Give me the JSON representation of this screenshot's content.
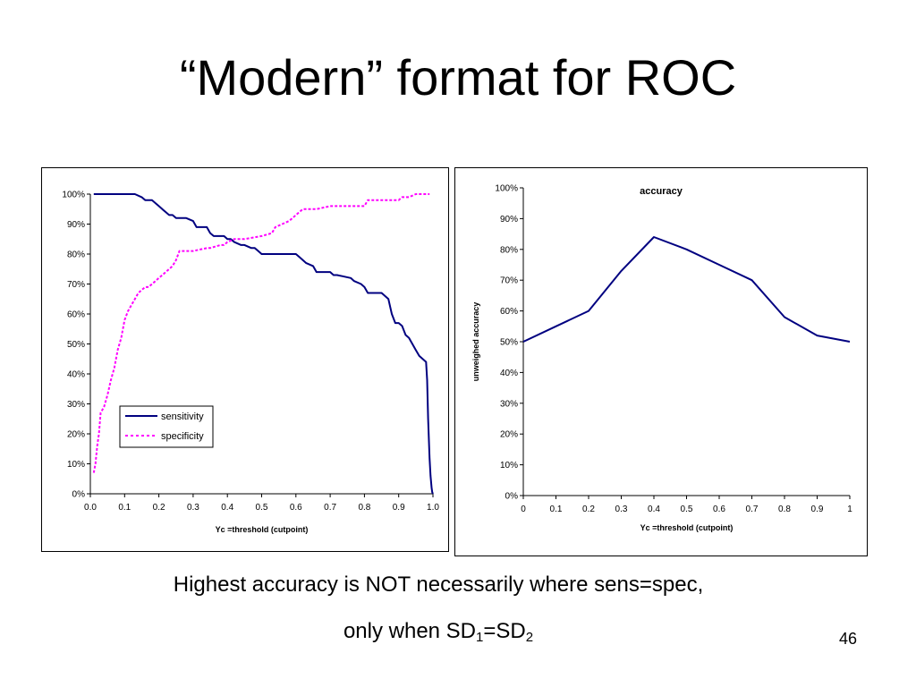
{
  "slide": {
    "title": "“Modern” format for ROC",
    "caption_line1": "Highest accuracy is NOT necessarily where sens=spec,",
    "caption_line2_prefix": "only when SD",
    "caption_sub1": "1",
    "caption_eq": "=SD",
    "caption_sub2": "2",
    "page_number": "46"
  },
  "chart_data": [
    {
      "type": "line",
      "title": "",
      "xlabel": "Yc =threshold (cutpoint)",
      "ylabel": "",
      "xlim": [
        0,
        1
      ],
      "ylim": [
        0,
        1
      ],
      "x_ticks": [
        0,
        0.1,
        0.2,
        0.3,
        0.4,
        0.5,
        0.6,
        0.7,
        0.8,
        0.9,
        1.0
      ],
      "x_tick_labels": [
        "0.0",
        "0.1",
        "0.2",
        "0.3",
        "0.4",
        "0.5",
        "0.6",
        "0.7",
        "0.8",
        "0.9",
        "1.0"
      ],
      "y_ticks": [
        0,
        0.1,
        0.2,
        0.3,
        0.4,
        0.5,
        0.6,
        0.7,
        0.8,
        0.9,
        1.0
      ],
      "y_tick_labels": [
        "0%",
        "10%",
        "20%",
        "30%",
        "40%",
        "50%",
        "60%",
        "70%",
        "80%",
        "90%",
        "100%"
      ],
      "grid": false,
      "legend": "lower-left",
      "series": [
        {
          "name": "sensitivity",
          "color": "#000080",
          "style": "solid",
          "x": [
            0.01,
            0.13,
            0.15,
            0.16,
            0.18,
            0.19,
            0.2,
            0.21,
            0.22,
            0.23,
            0.24,
            0.25,
            0.28,
            0.3,
            0.31,
            0.34,
            0.35,
            0.36,
            0.39,
            0.4,
            0.41,
            0.42,
            0.44,
            0.45,
            0.47,
            0.48,
            0.49,
            0.5,
            0.56,
            0.6,
            0.61,
            0.63,
            0.65,
            0.66,
            0.7,
            0.71,
            0.72,
            0.76,
            0.77,
            0.79,
            0.8,
            0.81,
            0.82,
            0.83,
            0.85,
            0.86,
            0.87,
            0.88,
            0.89,
            0.9,
            0.91,
            0.92,
            0.93,
            0.94,
            0.95,
            0.96,
            0.97,
            0.98,
            0.983,
            0.986,
            0.99,
            0.993,
            0.996,
            0.998,
            1.0
          ],
          "y": [
            1.0,
            1.0,
            0.99,
            0.98,
            0.98,
            0.97,
            0.96,
            0.95,
            0.94,
            0.93,
            0.93,
            0.92,
            0.92,
            0.91,
            0.89,
            0.89,
            0.87,
            0.86,
            0.86,
            0.85,
            0.85,
            0.84,
            0.83,
            0.83,
            0.82,
            0.82,
            0.81,
            0.8,
            0.8,
            0.8,
            0.79,
            0.77,
            0.76,
            0.74,
            0.74,
            0.73,
            0.73,
            0.72,
            0.71,
            0.7,
            0.69,
            0.67,
            0.67,
            0.67,
            0.67,
            0.66,
            0.65,
            0.6,
            0.57,
            0.57,
            0.56,
            0.53,
            0.52,
            0.5,
            0.48,
            0.46,
            0.45,
            0.44,
            0.38,
            0.25,
            0.12,
            0.06,
            0.02,
            0.005,
            0.0
          ]
        },
        {
          "name": "specificity",
          "color": "#FF00FF",
          "style": "dashed",
          "x": [
            0.01,
            0.015,
            0.02,
            0.025,
            0.03,
            0.04,
            0.05,
            0.06,
            0.07,
            0.08,
            0.09,
            0.1,
            0.11,
            0.12,
            0.13,
            0.14,
            0.15,
            0.16,
            0.17,
            0.18,
            0.19,
            0.2,
            0.21,
            0.22,
            0.23,
            0.24,
            0.25,
            0.26,
            0.28,
            0.3,
            0.34,
            0.35,
            0.38,
            0.39,
            0.4,
            0.42,
            0.44,
            0.45,
            0.5,
            0.53,
            0.54,
            0.56,
            0.58,
            0.59,
            0.6,
            0.61,
            0.62,
            0.65,
            0.66,
            0.7,
            0.75,
            0.8,
            0.81,
            0.85,
            0.9,
            0.91,
            0.93,
            0.95,
            0.96,
            0.99
          ],
          "y": [
            0.07,
            0.1,
            0.16,
            0.2,
            0.27,
            0.29,
            0.33,
            0.38,
            0.42,
            0.48,
            0.52,
            0.58,
            0.61,
            0.63,
            0.65,
            0.67,
            0.68,
            0.69,
            0.69,
            0.7,
            0.71,
            0.72,
            0.73,
            0.74,
            0.75,
            0.76,
            0.78,
            0.81,
            0.81,
            0.81,
            0.82,
            0.82,
            0.83,
            0.83,
            0.84,
            0.85,
            0.85,
            0.85,
            0.86,
            0.87,
            0.89,
            0.9,
            0.91,
            0.92,
            0.93,
            0.94,
            0.95,
            0.95,
            0.95,
            0.96,
            0.96,
            0.96,
            0.98,
            0.98,
            0.98,
            0.99,
            0.99,
            1.0,
            1.0,
            1.0
          ]
        }
      ]
    },
    {
      "type": "line",
      "title": "accuracy",
      "xlabel": "Yc =threshold (cutpoint)",
      "ylabel": "unweighed accuracy",
      "xlim": [
        0,
        1
      ],
      "ylim": [
        0,
        1
      ],
      "x_ticks": [
        0,
        0.1,
        0.2,
        0.3,
        0.4,
        0.5,
        0.6,
        0.7,
        0.8,
        0.9,
        1
      ],
      "x_tick_labels": [
        "0",
        "0.1",
        "0.2",
        "0.3",
        "0.4",
        "0.5",
        "0.6",
        "0.7",
        "0.8",
        "0.9",
        "1"
      ],
      "y_ticks": [
        0,
        0.1,
        0.2,
        0.3,
        0.4,
        0.5,
        0.6,
        0.7,
        0.8,
        0.9,
        1.0
      ],
      "y_tick_labels": [
        "0%",
        "10%",
        "20%",
        "30%",
        "40%",
        "50%",
        "60%",
        "70%",
        "80%",
        "90%",
        "100%"
      ],
      "grid": false,
      "series": [
        {
          "name": "",
          "color": "#000080",
          "style": "solid",
          "x": [
            0,
            0.1,
            0.2,
            0.3,
            0.4,
            0.5,
            0.6,
            0.7,
            0.8,
            0.9,
            1.0
          ],
          "y": [
            0.5,
            0.55,
            0.6,
            0.73,
            0.84,
            0.8,
            0.75,
            0.7,
            0.58,
            0.52,
            0.5
          ]
        }
      ]
    }
  ]
}
